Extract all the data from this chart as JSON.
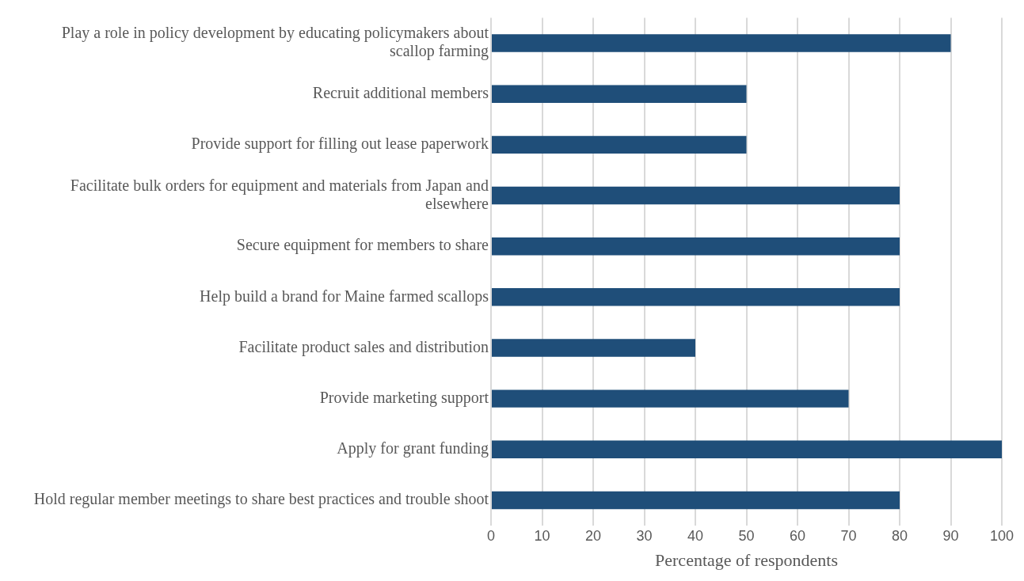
{
  "chart_data": {
    "type": "bar",
    "orientation": "horizontal",
    "xlabel": "Percentage of respondents",
    "categories": [
      "Play a role in policy development by educating policymakers about scallop farming",
      "Recruit additional members",
      "Provide support for filling out lease paperwork",
      "Facilitate bulk orders for equipment and materials from Japan and elsewhere",
      "Secure equipment for members to share",
      "Help build a brand for Maine farmed scallops",
      "Facilitate product sales and distribution",
      "Provide marketing support",
      "Apply for grant funding",
      "Hold regular member meetings to share best practices and trouble shoot"
    ],
    "values": [
      90,
      50,
      50,
      80,
      80,
      80,
      40,
      70,
      100,
      80
    ],
    "color": "#1f4e79",
    "xlim": [
      0,
      100
    ],
    "xticks": [
      0,
      10,
      20,
      30,
      40,
      50,
      60,
      70,
      80,
      90,
      100
    ],
    "grid": "x",
    "legend": false
  }
}
